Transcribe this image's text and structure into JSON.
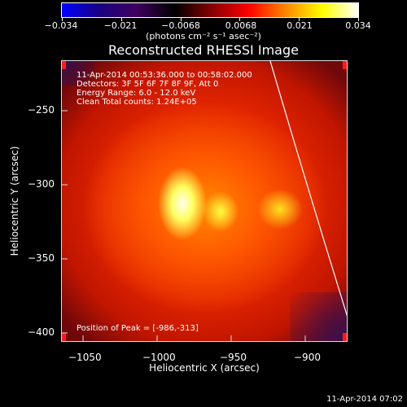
{
  "colorbar": {
    "ticks": [
      "−0.034",
      "−0.021",
      "−0.0068",
      "0.0068",
      "0.021",
      "0.034"
    ],
    "unit": "(photons cm⁻² s⁻¹ asec⁻²)",
    "colors": [
      "#0000ff",
      "#1a0080",
      "#400060",
      "#000000",
      "#800000",
      "#ff0000",
      "#ff8000",
      "#ffff00",
      "#ffffff"
    ]
  },
  "title": "Reconstructed RHESSI Image",
  "info": {
    "line1": "11-Apr-2014 00:53:36.000 to 00:58:02.000",
    "line2": "Detectors: 3F 5F 6F 7F 8F 9F, Att 0",
    "line3": "Energy Range: 6.0 - 12.0 keV",
    "line4": "Clean     Total counts: 1.24E+05",
    "peak": "Position of Peak = [-986,-313]"
  },
  "axes": {
    "xlabel": "Heliocentric X (arcsec)",
    "ylabel": "Heliocentric Y (arcsec)",
    "xticks": [
      "−1050",
      "−1000",
      "−950",
      "−900"
    ],
    "yticks": [
      "−250",
      "−300",
      "−350",
      "−400"
    ]
  },
  "timestamp": "11-Apr-2014 07:02"
}
